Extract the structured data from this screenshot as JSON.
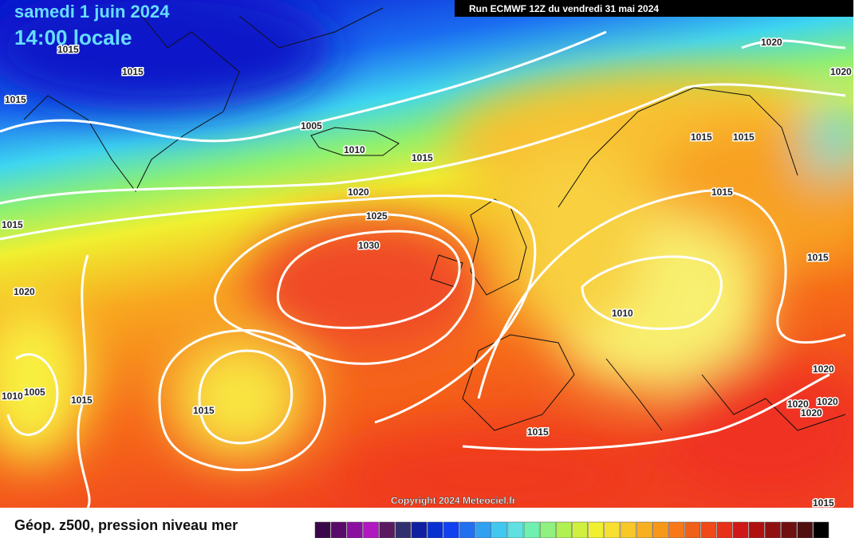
{
  "header": {
    "date": "samedi 1 juin 2024",
    "time": "14:00 locale",
    "run": "Run ECMWF 12Z du vendredi 31 mai 2024"
  },
  "isobar_labels": [
    "1015",
    "1015",
    "1015",
    "1005",
    "1010",
    "1015",
    "1020",
    "1025",
    "1030",
    "1015",
    "1020",
    "1005",
    "1010",
    "1015",
    "1015",
    "1020",
    "1020",
    "1015",
    "1015",
    "1015",
    "1015",
    "1010",
    "1020",
    "1020",
    "1020",
    "1020",
    "1015",
    "1015"
  ],
  "copyright": "Copyright 2024 Meteociel.fr",
  "legend": {
    "title": "Géop. z500, pression niveau mer"
  }
}
